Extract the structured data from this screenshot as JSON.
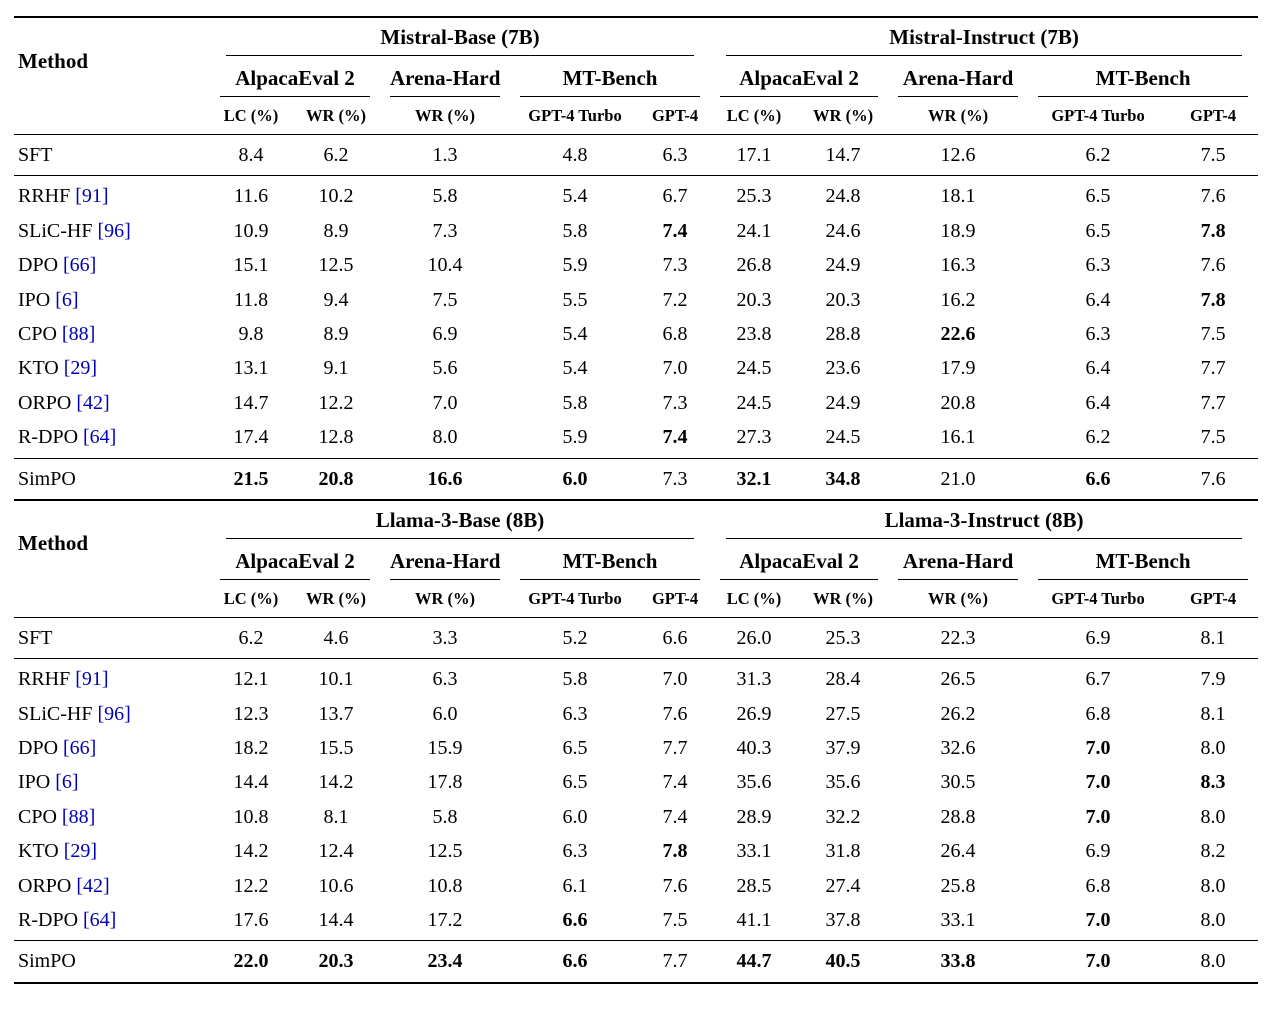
{
  "styles": {
    "citation_color": "#0000B4",
    "text_color": "#000000",
    "background": "#FFFFFF"
  },
  "tables": [
    {
      "method_header": "Method",
      "groups": [
        {
          "title": "Mistral-Base (7B)",
          "benchmarks": [
            {
              "label": "AlpacaEval 2",
              "metrics": [
                "LC (%)",
                "WR (%)"
              ]
            },
            {
              "label": "Arena-Hard",
              "metrics": [
                "WR (%)"
              ]
            },
            {
              "label": "MT-Bench",
              "metrics": [
                "GPT-4 Turbo",
                "GPT-4"
              ]
            }
          ]
        },
        {
          "title": "Mistral-Instruct (7B)",
          "benchmarks": [
            {
              "label": "AlpacaEval 2",
              "metrics": [
                "LC (%)",
                "WR (%)"
              ]
            },
            {
              "label": "Arena-Hard",
              "metrics": [
                "WR (%)"
              ]
            },
            {
              "label": "MT-Bench",
              "metrics": [
                "GPT-4 Turbo",
                "GPT-4"
              ]
            }
          ]
        }
      ],
      "sections": [
        {
          "rows": [
            {
              "method": "SFT",
              "cite": "",
              "values": [
                "8.4",
                "6.2",
                "1.3",
                "4.8",
                "6.3",
                "17.1",
                "14.7",
                "12.6",
                "6.2",
                "7.5"
              ],
              "bold": []
            }
          ]
        },
        {
          "rows": [
            {
              "method": "RRHF",
              "cite": "[91]",
              "values": [
                "11.6",
                "10.2",
                "5.8",
                "5.4",
                "6.7",
                "25.3",
                "24.8",
                "18.1",
                "6.5",
                "7.6"
              ],
              "bold": []
            },
            {
              "method": "SLiC-HF",
              "cite": "[96]",
              "values": [
                "10.9",
                "8.9",
                "7.3",
                "5.8",
                "7.4",
                "24.1",
                "24.6",
                "18.9",
                "6.5",
                "7.8"
              ],
              "bold": [
                4,
                9
              ]
            },
            {
              "method": "DPO",
              "cite": "[66]",
              "values": [
                "15.1",
                "12.5",
                "10.4",
                "5.9",
                "7.3",
                "26.8",
                "24.9",
                "16.3",
                "6.3",
                "7.6"
              ],
              "bold": []
            },
            {
              "method": "IPO",
              "cite": "[6]",
              "values": [
                "11.8",
                "9.4",
                "7.5",
                "5.5",
                "7.2",
                "20.3",
                "20.3",
                "16.2",
                "6.4",
                "7.8"
              ],
              "bold": [
                9
              ]
            },
            {
              "method": "CPO",
              "cite": "[88]",
              "values": [
                "9.8",
                "8.9",
                "6.9",
                "5.4",
                "6.8",
                "23.8",
                "28.8",
                "22.6",
                "6.3",
                "7.5"
              ],
              "bold": [
                7
              ]
            },
            {
              "method": "KTO",
              "cite": "[29]",
              "values": [
                "13.1",
                "9.1",
                "5.6",
                "5.4",
                "7.0",
                "24.5",
                "23.6",
                "17.9",
                "6.4",
                "7.7"
              ],
              "bold": []
            },
            {
              "method": "ORPO",
              "cite": "[42]",
              "values": [
                "14.7",
                "12.2",
                "7.0",
                "5.8",
                "7.3",
                "24.5",
                "24.9",
                "20.8",
                "6.4",
                "7.7"
              ],
              "bold": []
            },
            {
              "method": "R-DPO",
              "cite": "[64]",
              "values": [
                "17.4",
                "12.8",
                "8.0",
                "5.9",
                "7.4",
                "27.3",
                "24.5",
                "16.1",
                "6.2",
                "7.5"
              ],
              "bold": [
                4
              ]
            }
          ]
        },
        {
          "rows": [
            {
              "method": "SimPO",
              "cite": "",
              "values": [
                "21.5",
                "20.8",
                "16.6",
                "6.0",
                "7.3",
                "32.1",
                "34.8",
                "21.0",
                "6.6",
                "7.6"
              ],
              "bold": [
                0,
                1,
                2,
                3,
                5,
                6,
                8
              ]
            }
          ]
        }
      ]
    },
    {
      "method_header": "Method",
      "groups": [
        {
          "title": "Llama-3-Base (8B)",
          "benchmarks": [
            {
              "label": "AlpacaEval 2",
              "metrics": [
                "LC (%)",
                "WR (%)"
              ]
            },
            {
              "label": "Arena-Hard",
              "metrics": [
                "WR (%)"
              ]
            },
            {
              "label": "MT-Bench",
              "metrics": [
                "GPT-4 Turbo",
                "GPT-4"
              ]
            }
          ]
        },
        {
          "title": "Llama-3-Instruct (8B)",
          "benchmarks": [
            {
              "label": "AlpacaEval 2",
              "metrics": [
                "LC (%)",
                "WR (%)"
              ]
            },
            {
              "label": "Arena-Hard",
              "metrics": [
                "WR (%)"
              ]
            },
            {
              "label": "MT-Bench",
              "metrics": [
                "GPT-4 Turbo",
                "GPT-4"
              ]
            }
          ]
        }
      ],
      "sections": [
        {
          "rows": [
            {
              "method": "SFT",
              "cite": "",
              "values": [
                "6.2",
                "4.6",
                "3.3",
                "5.2",
                "6.6",
                "26.0",
                "25.3",
                "22.3",
                "6.9",
                "8.1"
              ],
              "bold": []
            }
          ]
        },
        {
          "rows": [
            {
              "method": "RRHF",
              "cite": "[91]",
              "values": [
                "12.1",
                "10.1",
                "6.3",
                "5.8",
                "7.0",
                "31.3",
                "28.4",
                "26.5",
                "6.7",
                "7.9"
              ],
              "bold": []
            },
            {
              "method": "SLiC-HF",
              "cite": "[96]",
              "values": [
                "12.3",
                "13.7",
                "6.0",
                "6.3",
                "7.6",
                "26.9",
                "27.5",
                "26.2",
                "6.8",
                "8.1"
              ],
              "bold": []
            },
            {
              "method": "DPO",
              "cite": "[66]",
              "values": [
                "18.2",
                "15.5",
                "15.9",
                "6.5",
                "7.7",
                "40.3",
                "37.9",
                "32.6",
                "7.0",
                "8.0"
              ],
              "bold": [
                8
              ]
            },
            {
              "method": "IPO",
              "cite": "[6]",
              "values": [
                "14.4",
                "14.2",
                "17.8",
                "6.5",
                "7.4",
                "35.6",
                "35.6",
                "30.5",
                "7.0",
                "8.3"
              ],
              "bold": [
                8,
                9
              ]
            },
            {
              "method": "CPO",
              "cite": "[88]",
              "values": [
                "10.8",
                "8.1",
                "5.8",
                "6.0",
                "7.4",
                "28.9",
                "32.2",
                "28.8",
                "7.0",
                "8.0"
              ],
              "bold": [
                8
              ]
            },
            {
              "method": "KTO",
              "cite": "[29]",
              "values": [
                "14.2",
                "12.4",
                "12.5",
                "6.3",
                "7.8",
                "33.1",
                "31.8",
                "26.4",
                "6.9",
                "8.2"
              ],
              "bold": [
                4
              ]
            },
            {
              "method": "ORPO",
              "cite": "[42]",
              "values": [
                "12.2",
                "10.6",
                "10.8",
                "6.1",
                "7.6",
                "28.5",
                "27.4",
                "25.8",
                "6.8",
                "8.0"
              ],
              "bold": []
            },
            {
              "method": "R-DPO",
              "cite": "[64]",
              "values": [
                "17.6",
                "14.4",
                "17.2",
                "6.6",
                "7.5",
                "41.1",
                "37.8",
                "33.1",
                "7.0",
                "8.0"
              ],
              "bold": [
                3,
                8
              ]
            }
          ]
        },
        {
          "rows": [
            {
              "method": "SimPO",
              "cite": "",
              "values": [
                "22.0",
                "20.3",
                "23.4",
                "6.6",
                "7.7",
                "44.7",
                "40.5",
                "33.8",
                "7.0",
                "8.0"
              ],
              "bold": [
                0,
                1,
                2,
                3,
                5,
                6,
                7,
                8
              ]
            }
          ]
        }
      ]
    }
  ]
}
